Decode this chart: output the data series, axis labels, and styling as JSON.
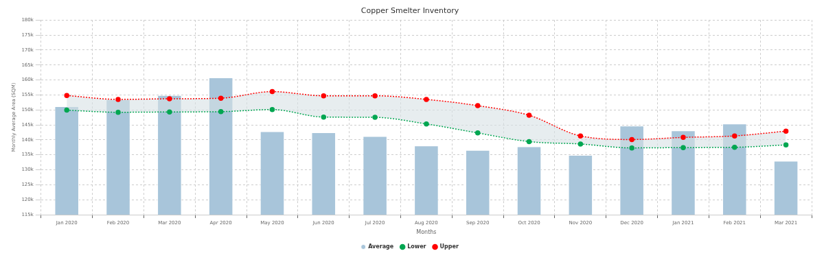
{
  "chart_data": {
    "type": "bar",
    "title": "Copper Smelter Inventory",
    "xlabel": "Months",
    "ylabel": "Monthly Average Area (SQM)",
    "categories": [
      "Jan 2020",
      "Feb 2020",
      "Mar 2020",
      "Apr 2020",
      "May 2020",
      "Jun 2020",
      "Jul 2020",
      "Aug 2020",
      "Sep 2020",
      "Oct 2020",
      "Nov 2020",
      "Dec 2020",
      "Jan 2021",
      "Feb 2021",
      "Mar 2021"
    ],
    "series": [
      {
        "name": "Average",
        "color": "#a8c5da",
        "values": [
          151200,
          153500,
          154900,
          160800,
          142800,
          142500,
          141200,
          138100,
          136600,
          137800,
          134900,
          144700,
          143100,
          145400,
          133000
        ]
      },
      {
        "name": "Lower",
        "type": "line",
        "color": "#00a651",
        "values": [
          149900,
          149200,
          149300,
          149400,
          150100,
          147600,
          147500,
          145300,
          142300,
          139400,
          138600,
          137300,
          137400,
          137500,
          138300
        ]
      },
      {
        "name": "Upper",
        "type": "line",
        "color": "#ff0000",
        "values": [
          154800,
          153500,
          153700,
          153900,
          156100,
          154700,
          154700,
          153500,
          151400,
          148200,
          141300,
          140100,
          140800,
          141300,
          142900
        ],
        "lower": [
          149900,
          149200,
          149300,
          149400,
          150100,
          147600,
          147500,
          145300,
          142300,
          139400,
          138600,
          137300,
          137400,
          137500,
          138300
        ],
        "upper": [
          154800,
          153500,
          153700,
          153900,
          156100,
          154700,
          154700,
          153500,
          151400,
          148200,
          141300,
          140100,
          140800,
          141300,
          142900
        ]
      }
    ],
    "ylim": [
      115000,
      180000
    ],
    "yticks": [
      {
        "value": 115000,
        "label": "115k"
      },
      {
        "value": 120000,
        "label": "120k"
      },
      {
        "value": 125000,
        "label": "125k"
      },
      {
        "value": 130000,
        "label": "130k"
      },
      {
        "value": 135000,
        "label": "135k"
      },
      {
        "value": 140000,
        "label": "140k"
      },
      {
        "value": 145000,
        "label": "145k"
      },
      {
        "value": 150000,
        "label": "150k"
      },
      {
        "value": 155000,
        "label": "155k"
      },
      {
        "value": 160000,
        "label": "160k"
      },
      {
        "value": 165000,
        "label": "165k"
      },
      {
        "value": 170000,
        "label": "170k"
      },
      {
        "value": 175000,
        "label": "175k"
      },
      {
        "value": 180000,
        "label": "180k"
      }
    ],
    "grid": true,
    "legend": "bottom",
    "marker": "circle",
    "line_style": "dotted"
  }
}
